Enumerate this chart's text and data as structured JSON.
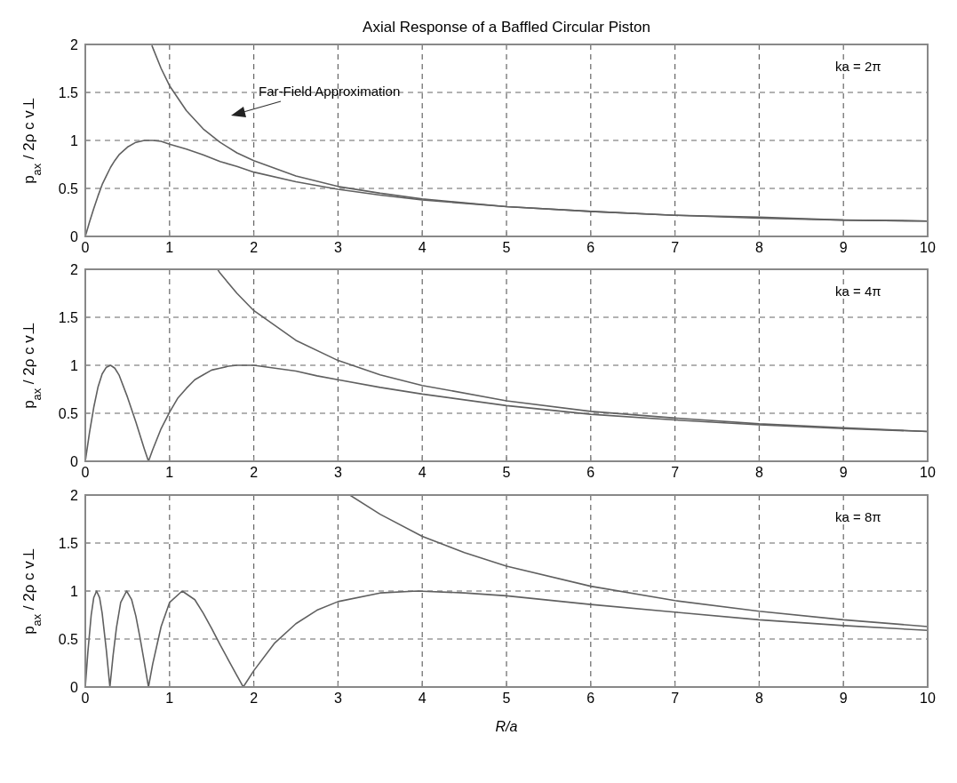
{
  "chart_data": [
    {
      "type": "line",
      "title": "Axial Response of a Baffled Circular Piston",
      "ylabel": "p$_{ax}$ / 2ρ c v⊥",
      "annotations": [
        "ka = 2π",
        "Far-Field Approximation"
      ],
      "xlim": [
        0,
        10
      ],
      "ylim": [
        0,
        2
      ],
      "xticks": [
        0,
        1,
        2,
        3,
        4,
        5,
        6,
        7,
        8,
        9,
        10
      ],
      "yticks": [
        0,
        0.5,
        1,
        1.5,
        2
      ],
      "grid": true,
      "series": [
        {
          "color": "#606060",
          "x": [
            0,
            0.05,
            0.1,
            0.15,
            0.2,
            0.25,
            0.3,
            0.35,
            0.4,
            0.5,
            0.6,
            0.7,
            0.8,
            0.9,
            1,
            1.2,
            1.4,
            1.6,
            1.8,
            2,
            2.5,
            3,
            3.5,
            4,
            5,
            6,
            7,
            8,
            9,
            10
          ],
          "values": [
            0,
            0.15,
            0.29,
            0.42,
            0.54,
            0.63,
            0.72,
            0.79,
            0.85,
            0.93,
            0.98,
            1.0,
            1.0,
            0.99,
            0.96,
            0.91,
            0.85,
            0.78,
            0.73,
            0.67,
            0.57,
            0.49,
            0.43,
            0.38,
            0.31,
            0.26,
            0.22,
            0.19,
            0.17,
            0.16
          ]
        },
        {
          "color": "#606060",
          "x": [
            0.79,
            0.9,
            1,
            1.2,
            1.4,
            1.6,
            1.8,
            2,
            2.5,
            3,
            3.5,
            4,
            5,
            6,
            7,
            8,
            9,
            10
          ],
          "values": [
            1.99,
            1.75,
            1.57,
            1.31,
            1.12,
            0.98,
            0.87,
            0.79,
            0.63,
            0.52,
            0.45,
            0.39,
            0.31,
            0.26,
            0.22,
            0.2,
            0.17,
            0.16
          ]
        }
      ]
    },
    {
      "type": "line",
      "ylabel": "p$_{ax}$ / 2ρ c v⊥",
      "annotations": [
        "ka = 4π"
      ],
      "xlim": [
        0,
        10
      ],
      "ylim": [
        0,
        2
      ],
      "xticks": [
        0,
        1,
        2,
        3,
        4,
        5,
        6,
        7,
        8,
        9,
        10
      ],
      "yticks": [
        0,
        0.5,
        1,
        1.5,
        2
      ],
      "grid": true,
      "series": [
        {
          "color": "#606060",
          "x": [
            0,
            0.05,
            0.1,
            0.15,
            0.2,
            0.25,
            0.3,
            0.35,
            0.4,
            0.5,
            0.6,
            0.7,
            0.75,
            0.8,
            0.9,
            1,
            1.1,
            1.2,
            1.3,
            1.4,
            1.5,
            1.6,
            1.7,
            1.8,
            2,
            2.25,
            2.5,
            2.75,
            3,
            3.5,
            4,
            5,
            6,
            7,
            8,
            9,
            10
          ],
          "values": [
            0,
            0.3,
            0.56,
            0.77,
            0.91,
            0.98,
            1.0,
            0.97,
            0.9,
            0.67,
            0.41,
            0.13,
            0,
            0.12,
            0.34,
            0.51,
            0.66,
            0.76,
            0.85,
            0.9,
            0.95,
            0.97,
            0.99,
            1.0,
            1.0,
            0.97,
            0.94,
            0.89,
            0.85,
            0.77,
            0.7,
            0.58,
            0.49,
            0.43,
            0.38,
            0.34,
            0.31
          ]
        },
        {
          "color": "#606060",
          "x": [
            1.57,
            1.6,
            1.8,
            2,
            2.5,
            3,
            3.5,
            4,
            5,
            6,
            7,
            8,
            9,
            10
          ],
          "values": [
            2.0,
            1.96,
            1.75,
            1.57,
            1.26,
            1.05,
            0.9,
            0.79,
            0.63,
            0.52,
            0.45,
            0.39,
            0.35,
            0.31
          ]
        }
      ]
    },
    {
      "type": "line",
      "ylabel": "p$_{ax}$ / 2ρ c v⊥",
      "xlabel": "R/a",
      "annotations": [
        "ka = 8π"
      ],
      "xlim": [
        0,
        10
      ],
      "ylim": [
        0,
        2
      ],
      "xticks": [
        0,
        1,
        2,
        3,
        4,
        5,
        6,
        7,
        8,
        9,
        10
      ],
      "yticks": [
        0,
        0.5,
        1,
        1.5,
        2
      ],
      "grid": true,
      "series": [
        {
          "color": "#606060",
          "x": [
            0,
            0.03,
            0.07,
            0.1,
            0.134,
            0.17,
            0.2,
            0.25,
            0.292,
            0.33,
            0.37,
            0.42,
            0.49,
            0.55,
            0.6,
            0.65,
            0.7,
            0.75,
            0.8,
            0.9,
            1,
            1.15,
            1.3,
            1.4,
            1.5,
            1.6,
            1.7,
            1.8,
            1.875,
            2,
            2.25,
            2.5,
            2.75,
            3,
            3.5,
            3.94,
            4.5,
            5,
            6,
            7,
            8,
            9,
            10
          ],
          "values": [
            0,
            0.36,
            0.75,
            0.93,
            1.0,
            0.93,
            0.77,
            0.38,
            0,
            0.33,
            0.62,
            0.88,
            1.0,
            0.91,
            0.74,
            0.51,
            0.26,
            0,
            0.24,
            0.63,
            0.88,
            1.0,
            0.91,
            0.77,
            0.61,
            0.44,
            0.28,
            0.12,
            0,
            0.17,
            0.46,
            0.66,
            0.8,
            0.89,
            0.98,
            1.0,
            0.98,
            0.95,
            0.86,
            0.78,
            0.7,
            0.64,
            0.59
          ]
        },
        {
          "color": "#606060",
          "x": [
            3.14,
            3.5,
            4,
            4.5,
            5,
            6,
            7,
            8,
            9,
            10
          ],
          "values": [
            2.0,
            1.8,
            1.57,
            1.4,
            1.26,
            1.05,
            0.9,
            0.79,
            0.7,
            0.63
          ]
        }
      ]
    }
  ]
}
